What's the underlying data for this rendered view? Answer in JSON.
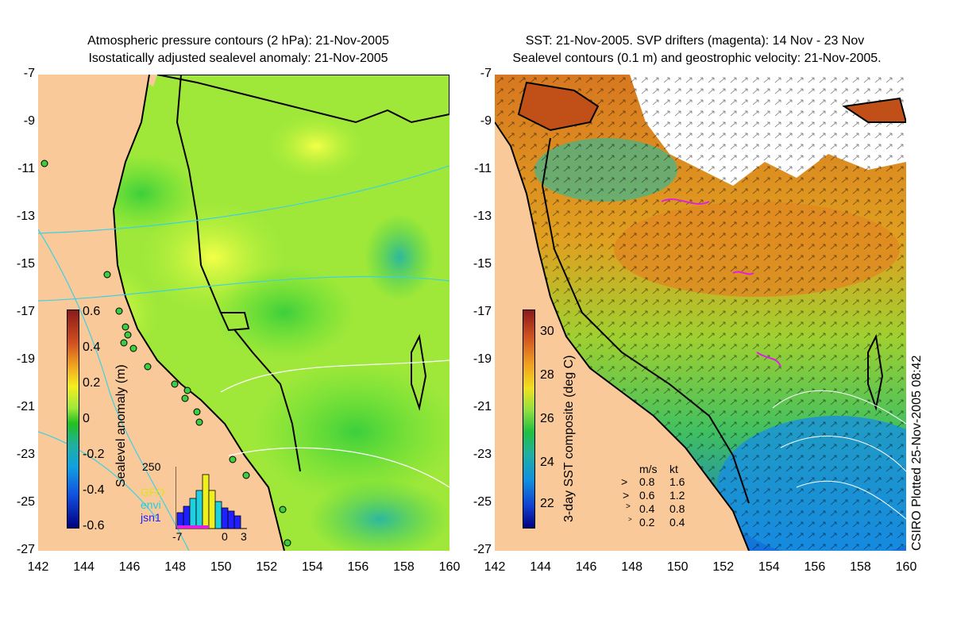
{
  "left_panel": {
    "title_line1": "Atmospheric pressure contours (2 hPa): 21-Nov-2005",
    "title_line2": "Isostatically adjusted sealevel anomaly: 21-Nov-2005",
    "colorbar": {
      "label": "Sealevel anomaly (m)",
      "ticks": [
        "0.6",
        "0.4",
        "0.2",
        "0",
        "-0.2",
        "-0.4",
        "-0.6"
      ]
    },
    "histogram": {
      "top_label": "250",
      "series": [
        "GFO",
        "envi",
        "jsn1"
      ],
      "series_colors": [
        "#ffff00",
        "#00ffff",
        "#0000ff"
      ],
      "x_labels": [
        "-7",
        "0",
        "3"
      ]
    }
  },
  "right_panel": {
    "title_line1": "SST: 21-Nov-2005. SVP drifters (magenta): 14 Nov - 23 Nov",
    "title_line2": "Sealevel contours (0.1 m) and geostrophic velocity: 21-Nov-2005.",
    "colorbar": {
      "label": "3-day SST composite (deg C)",
      "ticks": [
        "30",
        "28",
        "26",
        "24",
        "22"
      ]
    },
    "velocity_legend": {
      "header_ms": "m/s",
      "header_kt": "kt",
      "rows": [
        {
          "ms": "0.8",
          "kt": "1.6"
        },
        {
          "ms": "0.6",
          "kt": "1.2"
        },
        {
          "ms": "0.4",
          "kt": "0.8"
        },
        {
          "ms": "0.2",
          "kt": "0.4"
        }
      ]
    }
  },
  "axes": {
    "lat_labels": [
      "-7",
      "-9",
      "-11",
      "-13",
      "-15",
      "-17",
      "-19",
      "-21",
      "-23",
      "-25",
      "-27"
    ],
    "lon_labels": [
      "142",
      "144",
      "146",
      "148",
      "150",
      "152",
      "154",
      "156",
      "158",
      "160"
    ]
  },
  "credit": "CSIRO Plotted 25-Nov-2005 08:42",
  "colors": {
    "land": "#f9c99a",
    "coast": "#000000",
    "contour_cyan": "#3fd0e0",
    "contour_white": "#ffffff",
    "drifter": "#e020e0"
  }
}
